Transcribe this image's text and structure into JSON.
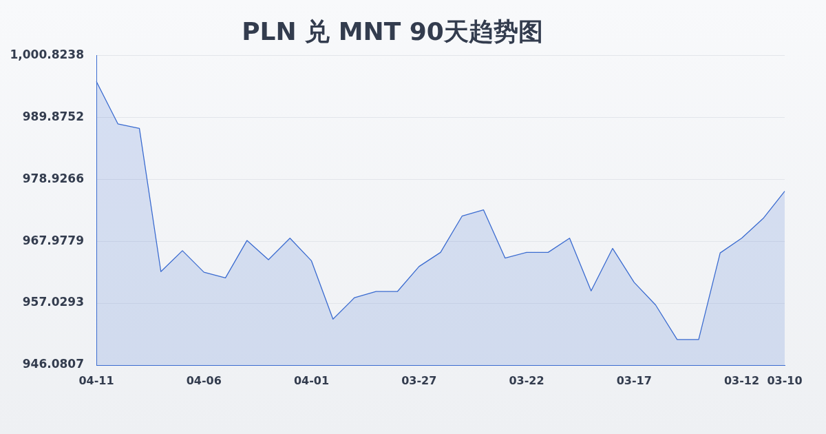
{
  "chart_data": {
    "type": "area",
    "title": "PLN 兑 MNT 90天趋势图",
    "categories": [
      "04-11",
      null,
      null,
      null,
      null,
      "04-06",
      null,
      null,
      null,
      null,
      "04-01",
      null,
      null,
      null,
      null,
      "03-27",
      null,
      null,
      null,
      null,
      "03-22",
      null,
      null,
      null,
      null,
      "03-17",
      null,
      null,
      null,
      null,
      "03-12",
      null,
      "03-10"
    ],
    "series": [
      {
        "color": "#3a6bd0",
        "values": [
          996.2,
          988.7,
          987.9,
          962.6,
          966.3,
          962.5,
          961.5,
          968.1,
          964.7,
          968.5,
          964.5,
          954.2,
          958.0,
          959.1,
          959.1,
          963.5,
          966.0,
          972.4,
          973.5,
          965.0,
          966.0,
          966.0,
          968.5,
          959.2,
          966.7,
          960.7,
          956.7,
          950.6,
          950.6,
          965.9,
          968.5,
          972.0,
          976.8
        ]
      }
    ],
    "ylim": [
      946.0807,
      1000.8238
    ],
    "yticks": [
      946.0807,
      957.0293,
      967.9779,
      978.9266,
      989.8752,
      {
        "value": 1000.8238,
        "label": "1,000.8238"
      }
    ],
    "grid": "y",
    "marker": "none",
    "line_style": "solid"
  }
}
